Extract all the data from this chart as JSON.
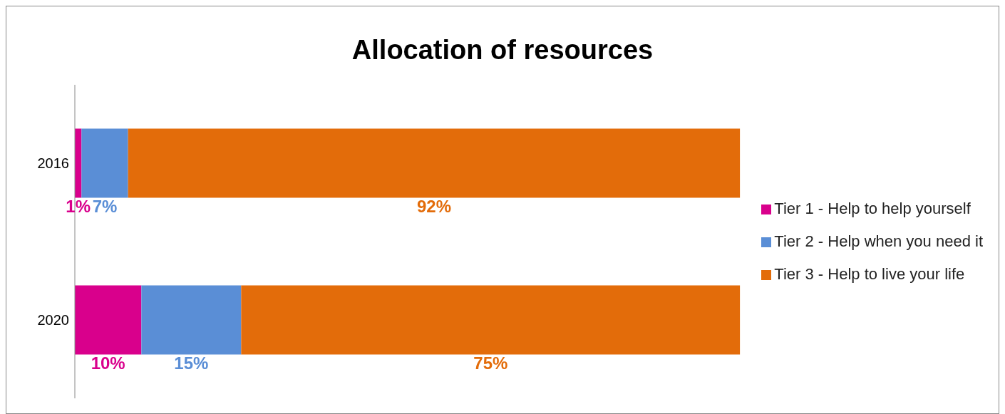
{
  "chart_data": {
    "type": "bar",
    "title": "Allocation of resources",
    "orientation": "horizontal",
    "stacked": true,
    "categories": [
      "2016",
      "2020"
    ],
    "series": [
      {
        "name": "Tier 1 - Help to help yourself",
        "color": "#d9008c",
        "values": [
          1,
          10
        ],
        "value_labels": [
          "1%",
          "10%"
        ]
      },
      {
        "name": "Tier 2 - Help when you need it",
        "color": "#5a8ed6",
        "values": [
          7,
          15
        ],
        "value_labels": [
          "7%",
          "15%"
        ]
      },
      {
        "name": "Tier 3 - Help to live your life",
        "color": "#e36c0a",
        "values": [
          92,
          75
        ],
        "value_labels": [
          "92%",
          "75%"
        ]
      }
    ],
    "legend": "right",
    "grid": false
  }
}
